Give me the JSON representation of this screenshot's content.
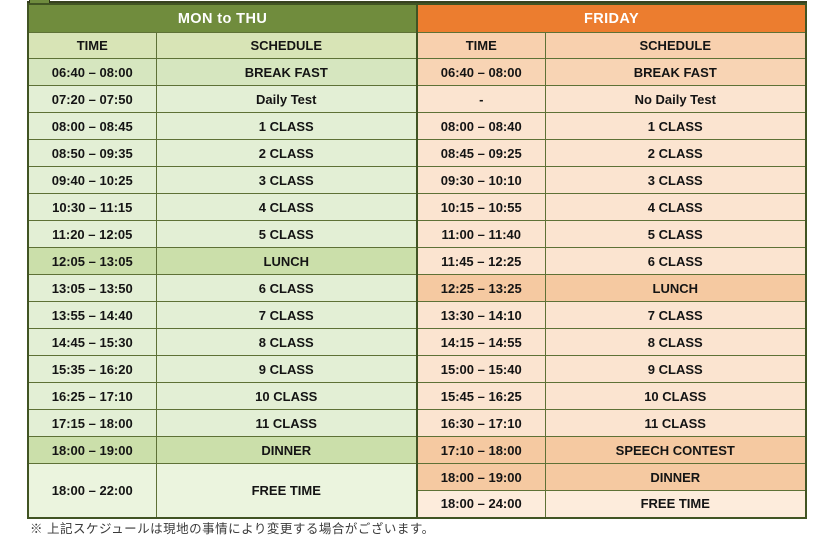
{
  "footnote": "※ 上記スケジュールは現地の事情により変更する場合がございます。",
  "colors": {
    "green_header": "#708c3d",
    "orange_header": "#ec7d2f",
    "green_col_header": "#d8e4b6",
    "orange_col_header": "#f8d0ae",
    "green_row": "#e3efd5",
    "green_highlight_row": "#cbdfaa",
    "orange_row": "#fbe4d0",
    "orange_highlight_row": "#f5c9a1",
    "border": "#5e7136",
    "header_text": "#ffffff",
    "cell_text": "#141414"
  },
  "tables": [
    {
      "title": "MON to THU",
      "theme": "green",
      "columns": {
        "time": "TIME",
        "schedule": "SCHEDULE"
      },
      "rows": [
        {
          "time": "06:40 – 08:00",
          "schedule": "BREAK FAST",
          "type": "breakfast"
        },
        {
          "time": "07:20 – 07:50",
          "schedule": "Daily Test",
          "type": "normal"
        },
        {
          "time": "08:00 – 08:45",
          "schedule": "1 CLASS",
          "type": "normal"
        },
        {
          "time": "08:50 – 09:35",
          "schedule": "2 CLASS",
          "type": "normal"
        },
        {
          "time": "09:40 – 10:25",
          "schedule": "3 CLASS",
          "type": "normal"
        },
        {
          "time": "10:30 – 11:15",
          "schedule": "4 CLASS",
          "type": "normal"
        },
        {
          "time": "11:20 – 12:05",
          "schedule": "5 CLASS",
          "type": "normal"
        },
        {
          "time": "12:05 – 13:05",
          "schedule": "LUNCH",
          "type": "highlight"
        },
        {
          "time": "13:05 – 13:50",
          "schedule": "6 CLASS",
          "type": "normal"
        },
        {
          "time": "13:55 – 14:40",
          "schedule": "7 CLASS",
          "type": "normal"
        },
        {
          "time": "14:45 – 15:30",
          "schedule": "8 CLASS",
          "type": "normal"
        },
        {
          "time": "15:35 – 16:20",
          "schedule": "9 CLASS",
          "type": "normal"
        },
        {
          "time": "16:25 – 17:10",
          "schedule": "10 CLASS",
          "type": "normal"
        },
        {
          "time": "17:15 – 18:00",
          "schedule": "11 CLASS",
          "type": "normal"
        },
        {
          "time": "18:00 – 19:00",
          "schedule": "DINNER",
          "type": "highlight"
        },
        {
          "time": "18:00 – 22:00",
          "schedule": "FREE TIME",
          "type": "free",
          "tall": true
        }
      ]
    },
    {
      "title": "FRIDAY",
      "theme": "orange",
      "columns": {
        "time": "TIME",
        "schedule": "SCHEDULE"
      },
      "rows": [
        {
          "time": "06:40 – 08:00",
          "schedule": "BREAK FAST",
          "type": "breakfast"
        },
        {
          "time": "-",
          "schedule": "No Daily Test",
          "type": "normal"
        },
        {
          "time": "08:00 – 08:40",
          "schedule": "1 CLASS",
          "type": "normal"
        },
        {
          "time": "08:45 – 09:25",
          "schedule": "2 CLASS",
          "type": "normal"
        },
        {
          "time": "09:30 – 10:10",
          "schedule": "3 CLASS",
          "type": "normal"
        },
        {
          "time": "10:15 – 10:55",
          "schedule": "4 CLASS",
          "type": "normal"
        },
        {
          "time": "11:00 – 11:40",
          "schedule": "5 CLASS",
          "type": "normal"
        },
        {
          "time": "11:45 – 12:25",
          "schedule": "6 CLASS",
          "type": "normal"
        },
        {
          "time": "12:25 – 13:25",
          "schedule": "LUNCH",
          "type": "highlight"
        },
        {
          "time": "13:30 – 14:10",
          "schedule": "7 CLASS",
          "type": "normal"
        },
        {
          "time": "14:15 – 14:55",
          "schedule": "8 CLASS",
          "type": "normal"
        },
        {
          "time": "15:00 – 15:40",
          "schedule": "9 CLASS",
          "type": "normal"
        },
        {
          "time": "15:45 – 16:25",
          "schedule": "10 CLASS",
          "type": "normal"
        },
        {
          "time": "16:30 – 17:10",
          "schedule": "11 CLASS",
          "type": "normal"
        },
        {
          "time": "17:10 – 18:00",
          "schedule": "SPEECH CONTEST",
          "type": "highlight"
        },
        {
          "time": "18:00 – 19:00",
          "schedule": "DINNER",
          "type": "highlight"
        },
        {
          "time": "18:00 – 24:00",
          "schedule": "FREE TIME",
          "type": "free"
        }
      ]
    }
  ]
}
